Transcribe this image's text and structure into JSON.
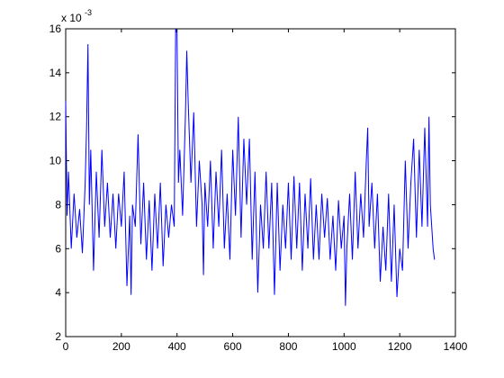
{
  "chart_data": {
    "type": "line",
    "y_multiplier": "x 10",
    "y_exponent": "-3",
    "xlim": [
      0,
      1400
    ],
    "xticks": [
      0,
      200,
      400,
      600,
      800,
      1000,
      1200,
      1400
    ],
    "ylim": [
      2,
      16
    ],
    "yticks": [
      2,
      4,
      6,
      8,
      10,
      12,
      14,
      16
    ],
    "series": [
      {
        "color": "#0000ff",
        "x": [
          0,
          5,
          10,
          20,
          30,
          40,
          50,
          60,
          70,
          75,
          80,
          85,
          90,
          100,
          110,
          120,
          130,
          140,
          150,
          160,
          170,
          180,
          190,
          200,
          210,
          220,
          230,
          235,
          240,
          250,
          260,
          270,
          280,
          290,
          300,
          310,
          320,
          330,
          340,
          350,
          360,
          370,
          380,
          390,
          395,
          400,
          405,
          410,
          420,
          430,
          435,
          440,
          450,
          460,
          470,
          480,
          490,
          495,
          500,
          510,
          520,
          530,
          540,
          550,
          560,
          570,
          580,
          590,
          600,
          610,
          620,
          630,
          640,
          650,
          660,
          670,
          680,
          690,
          700,
          710,
          720,
          730,
          740,
          750,
          760,
          770,
          780,
          790,
          800,
          810,
          820,
          830,
          840,
          850,
          860,
          870,
          880,
          890,
          900,
          910,
          920,
          930,
          940,
          950,
          960,
          970,
          980,
          990,
          1000,
          1005,
          1010,
          1020,
          1030,
          1040,
          1050,
          1060,
          1070,
          1080,
          1085,
          1090,
          1100,
          1110,
          1120,
          1130,
          1140,
          1150,
          1160,
          1170,
          1180,
          1190,
          1200,
          1210,
          1220,
          1230,
          1240,
          1250,
          1260,
          1270,
          1280,
          1290,
          1300,
          1305,
          1310,
          1320,
          1325
        ],
        "values": [
          12.7,
          7.5,
          9.5,
          6.0,
          8.5,
          6.5,
          7.8,
          5.8,
          9.0,
          11.5,
          15.3,
          8,
          10.5,
          5.0,
          9.5,
          6.5,
          10.5,
          7,
          9,
          6.5,
          8.5,
          6,
          8.5,
          7,
          9.5,
          4.3,
          7.5,
          3.9,
          8,
          7,
          11.2,
          6.2,
          9,
          5.5,
          8.2,
          5.0,
          8.5,
          6,
          9,
          5.2,
          8.0,
          6.5,
          8,
          7.0,
          16,
          15.8,
          9,
          10.5,
          7.5,
          12,
          15,
          12.7,
          9,
          12.2,
          7,
          10,
          8,
          4.8,
          9,
          7,
          10,
          6,
          9.5,
          7,
          10.5,
          6,
          8.5,
          5.5,
          10.5,
          7.5,
          12,
          6.5,
          11,
          8,
          11,
          5.5,
          9.5,
          4,
          8,
          6,
          9.5,
          6,
          9,
          3.9,
          9,
          5,
          8,
          6,
          9,
          5.5,
          9.3,
          6,
          9,
          5,
          8.5,
          6,
          9.2,
          5.5,
          8,
          5.5,
          8.5,
          6.5,
          8.3,
          5.5,
          7.5,
          5,
          8.2,
          6,
          7.5,
          3.4,
          6,
          8.5,
          5.5,
          9.5,
          6,
          8.5,
          6.5,
          10,
          11.5,
          7,
          9,
          6,
          8.5,
          4.5,
          7,
          5,
          8.5,
          4.5,
          8,
          3.8,
          6,
          5,
          10,
          6,
          9,
          11,
          6.5,
          10.5,
          7,
          11.5,
          7,
          12,
          8,
          6,
          5.5
        ]
      }
    ]
  }
}
